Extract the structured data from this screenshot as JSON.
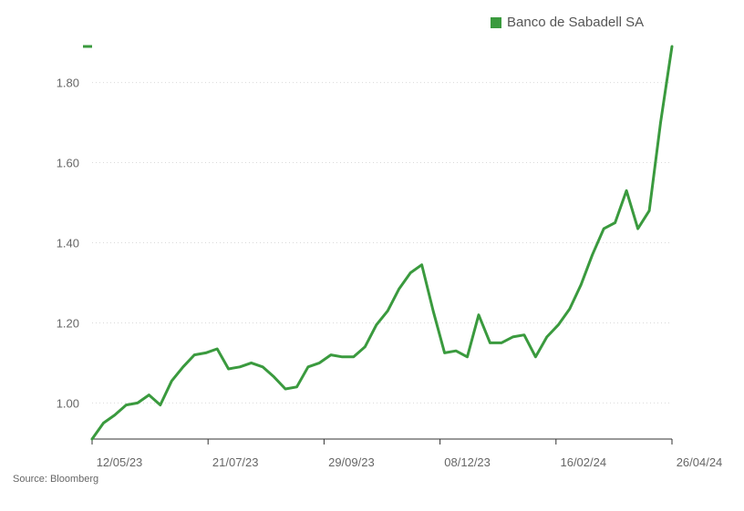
{
  "source": "Source: Bloomberg",
  "colors": {
    "series": "#3a9a3e",
    "grid": "#d9d9d9",
    "axis": "#333333"
  },
  "chart_data": {
    "type": "line",
    "title": "",
    "xlabel": "",
    "ylabel": "",
    "ylim": [
      0.91,
      1.89
    ],
    "grid": "horizontal-dotted",
    "legend": "top-right",
    "y_ticks": [
      "1.00",
      "1.20",
      "1.40",
      "1.60",
      "1.80"
    ],
    "x_ticks": [
      "12/05/23",
      "21/07/23",
      "29/09/23",
      "08/12/23",
      "16/02/24",
      "26/04/24"
    ],
    "series": [
      {
        "name": "Banco de Sabadell SA",
        "values": [
          0.91,
          0.95,
          0.97,
          0.995,
          1.0,
          1.02,
          0.995,
          1.055,
          1.09,
          1.12,
          1.125,
          1.135,
          1.085,
          1.09,
          1.1,
          1.09,
          1.065,
          1.035,
          1.04,
          1.09,
          1.1,
          1.12,
          1.115,
          1.115,
          1.14,
          1.195,
          1.23,
          1.285,
          1.325,
          1.345,
          1.23,
          1.125,
          1.13,
          1.115,
          1.22,
          1.15,
          1.15,
          1.165,
          1.17,
          1.115,
          1.165,
          1.195,
          1.235,
          1.295,
          1.37,
          1.435,
          1.45,
          1.53,
          1.435,
          1.48,
          1.7,
          1.89
        ]
      }
    ]
  }
}
